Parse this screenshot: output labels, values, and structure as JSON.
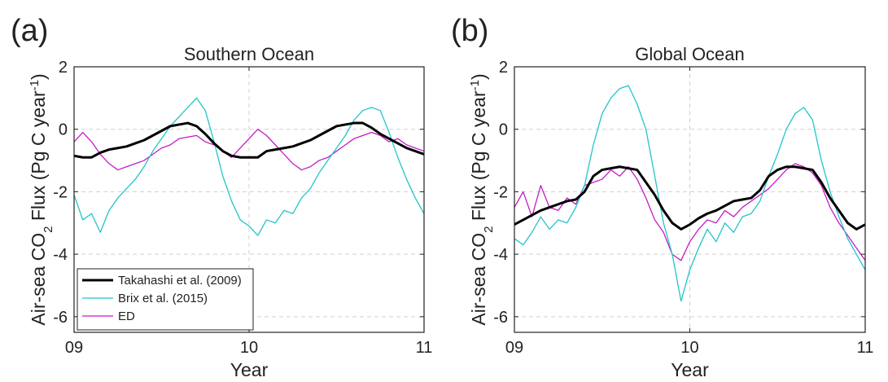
{
  "chart_data": [
    {
      "type": "line",
      "panel_label": "(a)",
      "title": "Southern Ocean",
      "xlabel": "Year",
      "ylabel": [
        "Air-sea CO",
        "2",
        " Flux (Pg C year",
        "-1",
        ")"
      ],
      "xlim": [
        9,
        11
      ],
      "xticks": [
        {
          "value": 9,
          "label": "09"
        },
        10,
        11
      ],
      "ylim": [
        -6.5,
        2
      ],
      "yticks": [
        -6,
        -4,
        -2,
        0,
        2
      ],
      "grid": true,
      "legend": "lower left",
      "x": [
        9.0,
        9.05,
        9.1,
        9.15,
        9.2,
        9.25,
        9.3,
        9.35,
        9.4,
        9.45,
        9.5,
        9.55,
        9.6,
        9.65,
        9.7,
        9.75,
        9.8,
        9.85,
        9.9,
        9.95,
        10.0,
        10.05,
        10.1,
        10.15,
        10.2,
        10.25,
        10.3,
        10.35,
        10.4,
        10.45,
        10.5,
        10.55,
        10.6,
        10.65,
        10.7,
        10.75,
        10.8,
        10.85,
        10.9,
        10.95,
        11.0
      ],
      "series": [
        {
          "name": "Takahashi et al. (2009)",
          "color": "#000000",
          "width": 3,
          "values": [
            -0.85,
            -0.9,
            -0.9,
            -0.75,
            -0.65,
            -0.6,
            -0.55,
            -0.45,
            -0.35,
            -0.2,
            -0.05,
            0.1,
            0.15,
            0.2,
            0.1,
            -0.15,
            -0.45,
            -0.7,
            -0.85,
            -0.9,
            -0.9,
            -0.9,
            -0.7,
            -0.65,
            -0.6,
            -0.55,
            -0.45,
            -0.35,
            -0.2,
            -0.05,
            0.1,
            0.15,
            0.2,
            0.2,
            0.05,
            -0.15,
            -0.3,
            -0.45,
            -0.6,
            -0.7,
            -0.8
          ]
        },
        {
          "name": "Brix et al. (2015)",
          "color": "#22c5c8",
          "width": 1.3,
          "values": [
            -2.1,
            -2.9,
            -2.7,
            -3.3,
            -2.6,
            -2.2,
            -1.9,
            -1.6,
            -1.2,
            -0.7,
            -0.3,
            0.1,
            0.4,
            0.7,
            1.0,
            0.6,
            -0.4,
            -1.5,
            -2.3,
            -2.9,
            -3.1,
            -3.4,
            -2.9,
            -3.0,
            -2.6,
            -2.7,
            -2.2,
            -1.9,
            -1.4,
            -1.0,
            -0.6,
            -0.2,
            0.3,
            0.6,
            0.7,
            0.6,
            -0.1,
            -0.9,
            -1.6,
            -2.2,
            -2.7
          ]
        },
        {
          "name": "ED",
          "color": "#c41cc4",
          "width": 1.3,
          "values": [
            -0.4,
            -0.1,
            -0.4,
            -0.8,
            -1.1,
            -1.3,
            -1.2,
            -1.1,
            -1.0,
            -0.8,
            -0.6,
            -0.5,
            -0.3,
            -0.25,
            -0.2,
            -0.4,
            -0.5,
            -0.7,
            -0.9,
            -0.6,
            -0.3,
            0.0,
            -0.2,
            -0.5,
            -0.8,
            -1.1,
            -1.3,
            -1.2,
            -1.0,
            -0.9,
            -0.7,
            -0.5,
            -0.3,
            -0.2,
            -0.1,
            -0.2,
            -0.4,
            -0.3,
            -0.5,
            -0.6,
            -0.7
          ]
        }
      ]
    },
    {
      "type": "line",
      "panel_label": "(b)",
      "title": "Global Ocean",
      "xlabel": "Year",
      "ylabel": [
        "Air-sea CO",
        "2",
        " Flux (Pg C year",
        "-1",
        ")"
      ],
      "xlim": [
        9,
        11
      ],
      "xticks": [
        {
          "value": 9,
          "label": "09"
        },
        10,
        11
      ],
      "ylim": [
        -6.5,
        2
      ],
      "yticks": [
        -6,
        -4,
        -2,
        0,
        2
      ],
      "grid": true,
      "x": [
        9.0,
        9.05,
        9.1,
        9.15,
        9.2,
        9.25,
        9.3,
        9.35,
        9.4,
        9.45,
        9.5,
        9.55,
        9.6,
        9.65,
        9.7,
        9.75,
        9.8,
        9.85,
        9.9,
        9.95,
        10.0,
        10.05,
        10.1,
        10.15,
        10.2,
        10.25,
        10.3,
        10.35,
        10.4,
        10.45,
        10.5,
        10.55,
        10.6,
        10.65,
        10.7,
        10.75,
        10.8,
        10.85,
        10.9,
        10.95,
        11.0
      ],
      "series": [
        {
          "color": "#000000",
          "width": 3,
          "values": [
            -3.05,
            -2.9,
            -2.75,
            -2.6,
            -2.5,
            -2.4,
            -2.3,
            -2.25,
            -2.0,
            -1.5,
            -1.3,
            -1.25,
            -1.2,
            -1.25,
            -1.3,
            -1.7,
            -2.1,
            -2.6,
            -3.0,
            -3.2,
            -3.05,
            -2.85,
            -2.7,
            -2.6,
            -2.45,
            -2.3,
            -2.25,
            -2.2,
            -1.95,
            -1.5,
            -1.3,
            -1.2,
            -1.2,
            -1.25,
            -1.3,
            -1.7,
            -2.2,
            -2.6,
            -3.0,
            -3.2,
            -3.05
          ]
        },
        {
          "color": "#22c5c8",
          "width": 1.3,
          "values": [
            -3.5,
            -3.7,
            -3.3,
            -2.8,
            -3.2,
            -2.9,
            -3.0,
            -2.5,
            -1.8,
            -0.5,
            0.5,
            1.0,
            1.3,
            1.4,
            0.8,
            0.0,
            -1.5,
            -3.0,
            -4.0,
            -5.5,
            -4.5,
            -3.8,
            -3.2,
            -3.6,
            -3.0,
            -3.3,
            -2.8,
            -2.7,
            -2.3,
            -1.5,
            -0.8,
            0.0,
            0.5,
            0.7,
            0.3,
            -1.0,
            -2.0,
            -2.8,
            -3.5,
            -4.0,
            -4.5
          ]
        },
        {
          "color": "#c41cc4",
          "width": 1.3,
          "values": [
            -2.5,
            -2.0,
            -2.8,
            -1.8,
            -2.5,
            -2.6,
            -2.2,
            -2.4,
            -1.8,
            -1.7,
            -1.6,
            -1.3,
            -1.5,
            -1.2,
            -1.6,
            -2.2,
            -2.9,
            -3.3,
            -4.0,
            -4.2,
            -3.6,
            -3.2,
            -2.9,
            -3.0,
            -2.6,
            -2.8,
            -2.5,
            -2.3,
            -2.1,
            -1.9,
            -1.6,
            -1.3,
            -1.1,
            -1.2,
            -1.4,
            -1.8,
            -2.5,
            -3.0,
            -3.4,
            -3.8,
            -4.2
          ]
        }
      ]
    }
  ]
}
